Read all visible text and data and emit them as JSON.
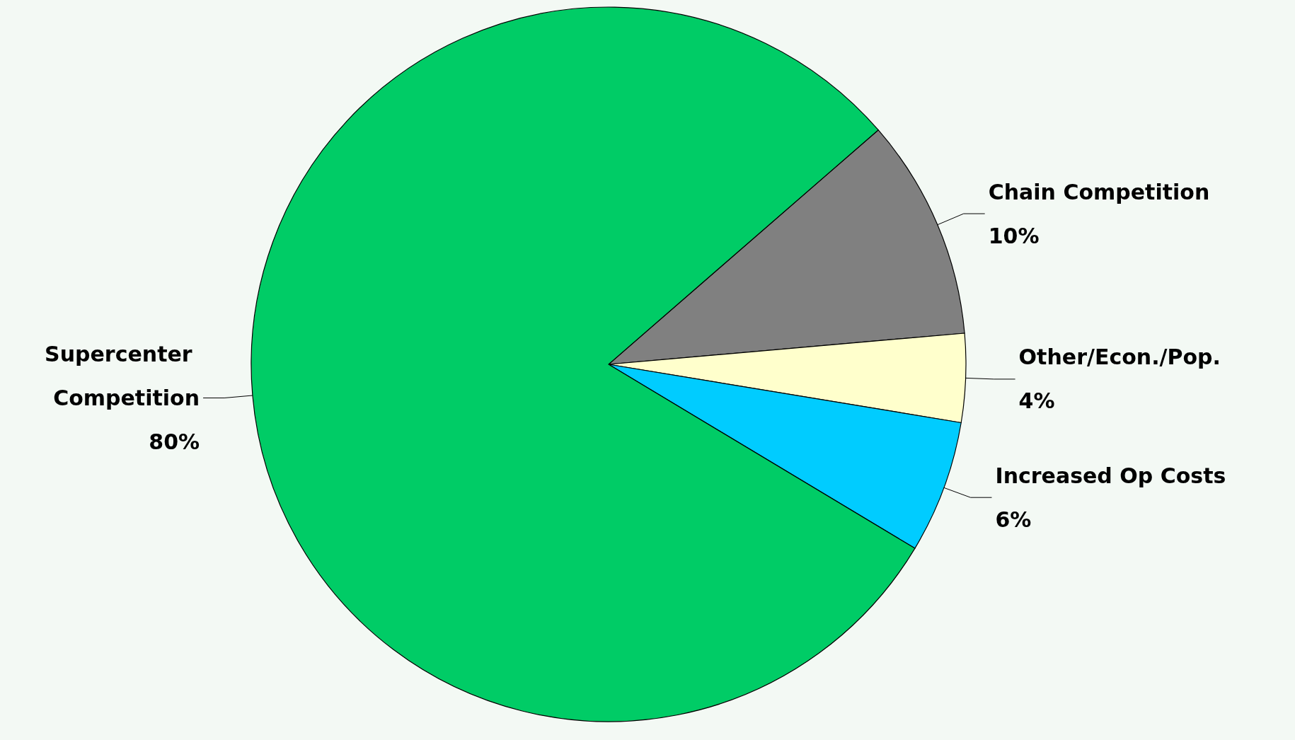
{
  "chart_data": {
    "type": "pie",
    "categories": [
      "Chain Competition",
      "Other/Econ./Pop.",
      "Increased Op Costs",
      "Supercenter Competition"
    ],
    "values": [
      10,
      4,
      6,
      80
    ],
    "colors": [
      "#808080",
      "#ffffcc",
      "#00ccff",
      "#00cc66"
    ],
    "value_labels": [
      "10%",
      "4%",
      "6%",
      "80%"
    ],
    "legend": false
  }
}
